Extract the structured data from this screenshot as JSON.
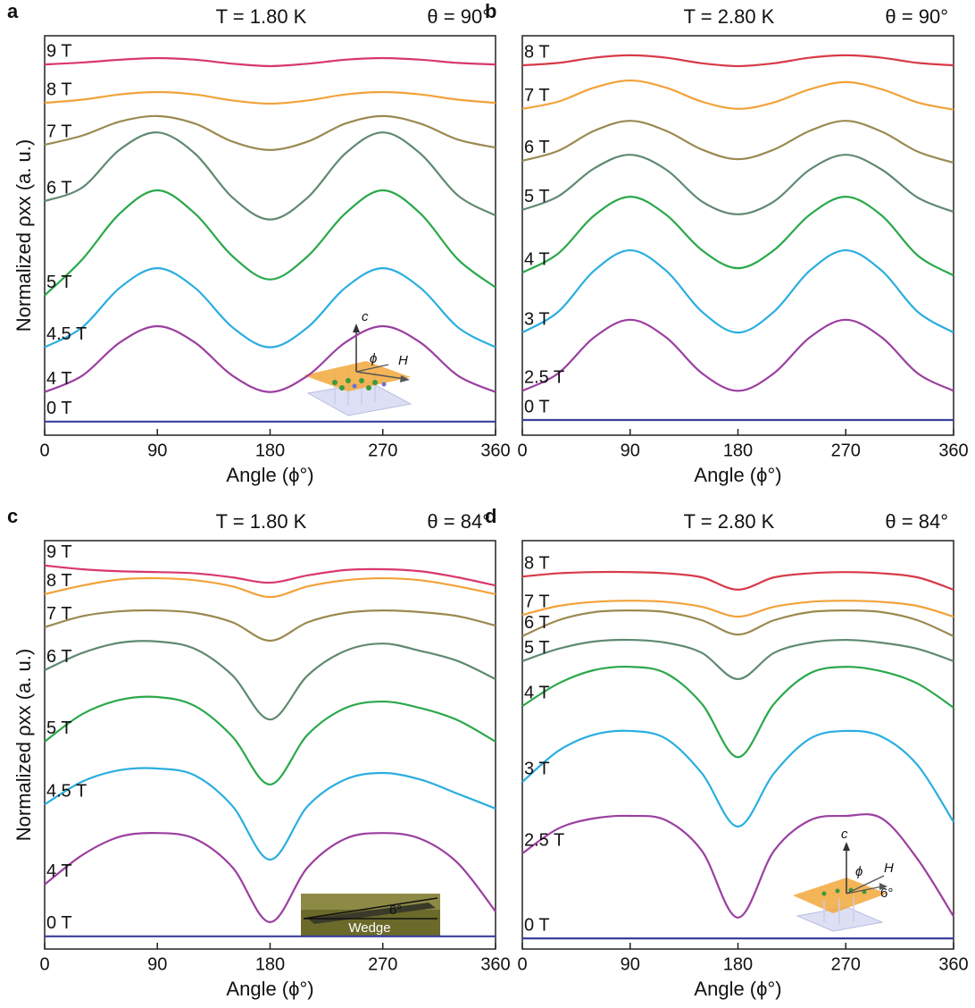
{
  "chart_data": [
    {
      "type": "line",
      "label": "a",
      "temperature": "T = 1.80 K",
      "angle": "θ = 90°",
      "xlabel": "Angle (ϕ°)",
      "ylabel": "Normalized ρxx (a. u.)",
      "x": [
        0,
        30,
        60,
        90,
        120,
        150,
        180,
        210,
        240,
        270,
        300,
        330,
        360
      ],
      "xlim": [
        0,
        360
      ],
      "xticks": [
        0,
        90,
        180,
        270,
        360
      ],
      "ylim": [
        0,
        100
      ],
      "inset": {
        "axis_c": "c",
        "angle": "ϕ",
        "field": "H"
      },
      "series": [
        {
          "name": "0 T",
          "color": "#3b3f9c",
          "values": [
            3.4,
            3.4,
            3.4,
            3.4,
            3.4,
            3.4,
            3.4,
            3.4,
            3.4,
            3.4,
            3.4,
            3.4,
            3.4
          ]
        },
        {
          "name": "4 T",
          "color": "#9b3fa0",
          "values": [
            10.8,
            14.9,
            23.2,
            27.3,
            23.2,
            14.9,
            10.8,
            14.9,
            23.2,
            27.3,
            23.2,
            14.9,
            10.8
          ]
        },
        {
          "name": "4.5 T",
          "color": "#2aaee0",
          "values": [
            22,
            27,
            36.9,
            41.8,
            36.9,
            27,
            22,
            27,
            36.9,
            41.8,
            36.9,
            27,
            22
          ]
        },
        {
          "name": "5 T",
          "color": "#2aa84a",
          "values": [
            35,
            44,
            55.5,
            61.3,
            55.5,
            44.8,
            39,
            44.8,
            55.5,
            61.3,
            55.5,
            44,
            37
          ]
        },
        {
          "name": "6 T",
          "color": "#5e8a70",
          "values": [
            58.6,
            62,
            71.5,
            75.8,
            70.5,
            59.5,
            54,
            59.5,
            70.5,
            75.8,
            70.5,
            60,
            55
          ]
        },
        {
          "name": "7 T",
          "color": "#9a8a50",
          "values": [
            72.7,
            75,
            78.5,
            79.9,
            78,
            73.5,
            71.4,
            73.5,
            78,
            79.9,
            78,
            74,
            72
          ]
        },
        {
          "name": "8 T",
          "color": "#f2a23a",
          "values": [
            83.2,
            84,
            85.3,
            85.9,
            85.3,
            83.8,
            83,
            83.8,
            85.3,
            85.9,
            85.3,
            84,
            83.2
          ]
        },
        {
          "name": "9 T",
          "color": "#d8386a",
          "values": [
            92.8,
            93.3,
            94,
            94.4,
            94,
            93,
            92.4,
            93,
            94,
            94.4,
            94,
            93.2,
            92.8
          ]
        }
      ]
    },
    {
      "type": "line",
      "label": "b",
      "temperature": "T = 2.80 K",
      "angle": "θ = 90°",
      "xlabel": "Angle (ϕ°)",
      "x": [
        0,
        30,
        60,
        90,
        120,
        150,
        180,
        210,
        240,
        270,
        300,
        330,
        360
      ],
      "xlim": [
        0,
        360
      ],
      "xticks": [
        0,
        90,
        180,
        270,
        360
      ],
      "ylim": [
        0,
        100
      ],
      "series": [
        {
          "name": "0 T",
          "color": "#3b3f9c",
          "values": [
            3.8,
            3.8,
            3.8,
            3.8,
            3.8,
            3.8,
            3.8,
            3.8,
            3.8,
            3.8,
            3.8,
            3.8,
            3.8
          ]
        },
        {
          "name": "2.5 T",
          "color": "#9b3fa0",
          "values": [
            11.1,
            15.5,
            24.5,
            28.9,
            24.5,
            15.5,
            11.1,
            15.5,
            24.5,
            28.9,
            24.5,
            15.5,
            11.1
          ]
        },
        {
          "name": "3 T",
          "color": "#2aaee0",
          "values": [
            25.7,
            30.9,
            41.2,
            46.3,
            41.2,
            30.9,
            25.7,
            30.9,
            41.2,
            46.3,
            41.2,
            30.9,
            25.7
          ]
        },
        {
          "name": "4 T",
          "color": "#2aa84a",
          "values": [
            40.7,
            45.5,
            55,
            59.7,
            55.2,
            46.3,
            41.8,
            46.3,
            55.2,
            59.7,
            55,
            45,
            40
          ]
        },
        {
          "name": "5 T",
          "color": "#5e8a70",
          "values": [
            56.4,
            59.8,
            66.8,
            70.2,
            66.5,
            58.5,
            55.3,
            58.5,
            66.5,
            70.2,
            66.5,
            59.5,
            55.9
          ]
        },
        {
          "name": "6 T",
          "color": "#9a8a50",
          "values": [
            68.7,
            71.2,
            76.2,
            78.7,
            76.2,
            71.5,
            69.1,
            71.5,
            76.2,
            78.7,
            76,
            71,
            68.2
          ]
        },
        {
          "name": "7 T",
          "color": "#f2a23a",
          "values": [
            81.7,
            83.5,
            87,
            88.8,
            87,
            83.5,
            81.7,
            83.3,
            86.6,
            88.4,
            86.6,
            83.3,
            81.5
          ]
        },
        {
          "name": "8 T",
          "color": "#d83a48",
          "values": [
            92.6,
            93.2,
            94.5,
            95.1,
            94.5,
            93.1,
            92.4,
            93.1,
            94.5,
            95.1,
            94.5,
            93.2,
            92.6
          ]
        }
      ]
    },
    {
      "type": "line",
      "label": "c",
      "temperature": "T = 1.80 K",
      "angle": "θ = 84°",
      "xlabel": "Angle (ϕ°)",
      "ylabel": "Normalized ρxx (a. u.)",
      "x": [
        0,
        30,
        60,
        90,
        120,
        150,
        180,
        210,
        240,
        270,
        300,
        330,
        360
      ],
      "xlim": [
        0,
        360
      ],
      "xticks": [
        0,
        90,
        180,
        270,
        360
      ],
      "ylim": [
        0,
        100
      ],
      "inset": {
        "tilt": "6°",
        "caption": "Wedge"
      },
      "series": [
        {
          "name": "0 T",
          "color": "#3b3f9c",
          "values": [
            3.1,
            3.1,
            3.1,
            3.1,
            3.1,
            3.1,
            3.1,
            3.1,
            3.1,
            3.1,
            3.1,
            3.1,
            3.1
          ]
        },
        {
          "name": "4 T",
          "color": "#9b3fa0",
          "values": [
            15.8,
            23,
            27.5,
            28.4,
            27,
            20,
            6.6,
            20,
            27,
            28.4,
            27,
            21,
            9.2
          ]
        },
        {
          "name": "4.5 T",
          "color": "#2aaee0",
          "values": [
            35.4,
            41,
            43.8,
            44.2,
            42.5,
            35,
            21.9,
            35,
            41.5,
            43.1,
            41.5,
            38,
            34.4
          ]
        },
        {
          "name": "5 T",
          "color": "#2aa84a",
          "values": [
            50.8,
            57.5,
            61,
            61.7,
            59.5,
            52,
            40.3,
            52.5,
            59,
            60.6,
            59,
            56,
            50.8
          ]
        },
        {
          "name": "6 T",
          "color": "#5e8a70",
          "values": [
            68.3,
            72.5,
            75,
            75.3,
            73.5,
            67,
            56.2,
            67,
            73,
            74.8,
            73,
            70.5,
            66.1
          ]
        },
        {
          "name": "7 T",
          "color": "#9a8a50",
          "values": [
            78.8,
            81.5,
            82.7,
            82.9,
            82.3,
            80,
            75.5,
            80,
            82.3,
            82.9,
            82.5,
            81.5,
            79.2
          ]
        },
        {
          "name": "8 T",
          "color": "#f2a23a",
          "values": [
            86.9,
            89,
            90.5,
            90.8,
            90.3,
            88.8,
            86.2,
            88.8,
            90.3,
            90.8,
            90.3,
            88.8,
            86.9
          ]
        },
        {
          "name": "9 T",
          "color": "#d8386a",
          "values": [
            93.9,
            93,
            92.5,
            92.3,
            92,
            91,
            89.7,
            91.5,
            92.8,
            93,
            92.5,
            91,
            89
          ]
        }
      ]
    },
    {
      "type": "line",
      "label": "d",
      "temperature": "T = 2.80 K",
      "angle": "θ = 84°",
      "xlabel": "Angle (ϕ°)",
      "x": [
        0,
        30,
        60,
        90,
        120,
        150,
        180,
        210,
        240,
        270,
        300,
        330,
        360
      ],
      "xlim": [
        0,
        360
      ],
      "xticks": [
        0,
        90,
        180,
        270,
        360
      ],
      "ylim": [
        0,
        100
      ],
      "inset": {
        "axis_c": "c",
        "angle": "ϕ",
        "field": "H",
        "tilt": "6°"
      },
      "series": [
        {
          "name": "0 T",
          "color": "#3b3f9c",
          "values": [
            2.6,
            2.6,
            2.6,
            2.6,
            2.6,
            2.6,
            2.6,
            2.6,
            2.6,
            2.6,
            2.6,
            2.6,
            2.6
          ]
        },
        {
          "name": "2.5 T",
          "color": "#9b3fa0",
          "values": [
            23.4,
            29.5,
            32,
            32.6,
            31.5,
            24,
            7.7,
            24,
            31.5,
            32.6,
            32,
            22,
            8
          ]
        },
        {
          "name": "3 T",
          "color": "#2aaee0",
          "values": [
            40.9,
            48.5,
            52.5,
            53.4,
            51.5,
            43,
            30,
            43,
            51.5,
            53.4,
            52,
            45,
            31.1
          ]
        },
        {
          "name": "4 T",
          "color": "#2aa84a",
          "values": [
            59.5,
            65,
            68.3,
            69.1,
            67.5,
            60,
            47,
            60,
            67.5,
            69.1,
            68,
            65,
            59.1
          ]
        },
        {
          "name": "5 T",
          "color": "#5e8a70",
          "values": [
            70.5,
            73.5,
            75.3,
            75.7,
            75,
            72.5,
            66.1,
            72.5,
            75,
            75.7,
            75,
            73.5,
            70.5
          ]
        },
        {
          "name": "6 T",
          "color": "#9a8a50",
          "values": [
            76.6,
            80.5,
            82.5,
            82.9,
            82.5,
            80.5,
            77,
            80.5,
            82.5,
            82.9,
            82.5,
            80.5,
            76.6
          ]
        },
        {
          "name": "7 T",
          "color": "#f2a23a",
          "values": [
            81.8,
            84,
            85,
            85.3,
            85,
            83.8,
            81.4,
            83.8,
            85,
            85.3,
            85,
            84,
            81.4
          ]
        },
        {
          "name": "8 T",
          "color": "#d83a48",
          "values": [
            91.2,
            92,
            92.3,
            92.3,
            92,
            91,
            88,
            91,
            92,
            92.3,
            92,
            91,
            88
          ]
        }
      ]
    }
  ]
}
